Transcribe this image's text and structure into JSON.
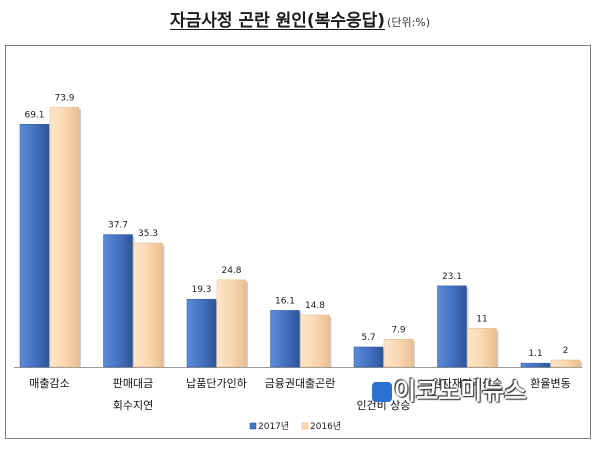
{
  "title": "자금사정 곤란 원인(복수응답)",
  "unit": "(단위:%)",
  "watermark": "이코노미뉴스",
  "chart_data": {
    "type": "bar",
    "categories": [
      "매출감소",
      "판매대금 회수지연",
      "납품단가인하",
      "금융권대출곤란",
      "인건비 상승",
      "원자재가격상승",
      "환율변동"
    ],
    "category_lines": [
      [
        "매출감소"
      ],
      [
        "판매대금",
        "회수지연"
      ],
      [
        "납품단가인하"
      ],
      [
        "금융권대출곤란"
      ],
      [
        "",
        "인건비 상승"
      ],
      [
        "원자재가격상승"
      ],
      [
        "환율변동"
      ]
    ],
    "series": [
      {
        "name": "2017년",
        "values": [
          69.1,
          37.7,
          19.3,
          16.1,
          5.7,
          23.1,
          1.1
        ],
        "color": "#4472c4"
      },
      {
        "name": "2016년",
        "values": [
          73.9,
          35.3,
          24.8,
          14.8,
          7.9,
          11,
          2
        ],
        "color": "#fad7b0"
      }
    ],
    "ylim": [
      0,
      80
    ],
    "grid": false,
    "legend": "bottom-center",
    "xlabel": "",
    "ylabel": ""
  }
}
